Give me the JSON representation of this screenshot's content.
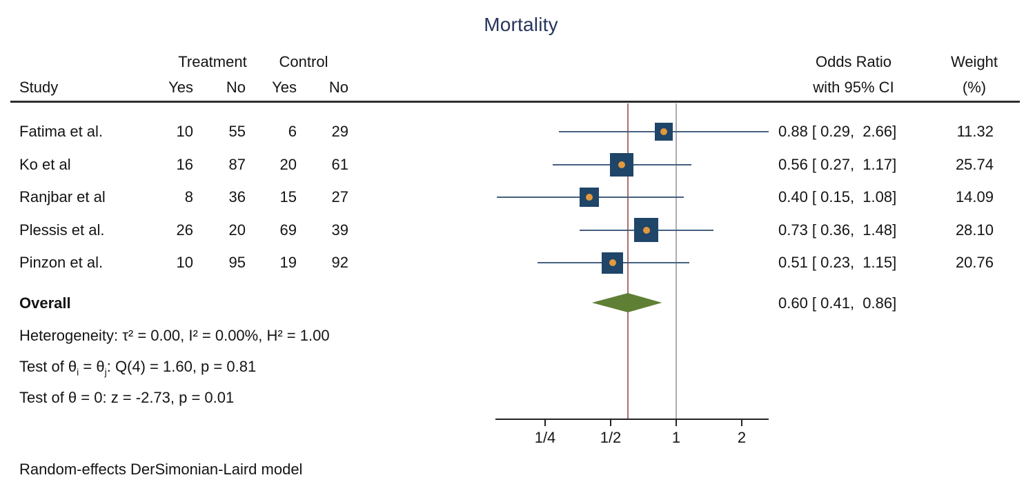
{
  "title": "Mortality",
  "table": {
    "col_study": "Study",
    "group_treatment": "Treatment",
    "group_control": "Control",
    "sub_yes": "Yes",
    "sub_no": "No",
    "col_or_line1": "Odds Ratio",
    "col_or_line2": "with 95% CI",
    "col_weight_line1": "Weight",
    "col_weight_line2": "(%)"
  },
  "rows": [
    {
      "study": "Fatima et al.",
      "t_yes": "10",
      "t_no": "55",
      "c_yes": "6",
      "c_no": "29",
      "or_ci": "0.88 [ 0.29,  2.66]",
      "weight": "11.32"
    },
    {
      "study": "Ko et al",
      "t_yes": "16",
      "t_no": "87",
      "c_yes": "20",
      "c_no": "61",
      "or_ci": "0.56 [ 0.27,  1.17]",
      "weight": "25.74"
    },
    {
      "study": "Ranjbar et al",
      "t_yes": "8",
      "t_no": "36",
      "c_yes": "15",
      "c_no": "27",
      "or_ci": "0.40 [ 0.15,  1.08]",
      "weight": "14.09"
    },
    {
      "study": "Plessis et al.",
      "t_yes": "26",
      "t_no": "20",
      "c_yes": "69",
      "c_no": "39",
      "or_ci": "0.73 [ 0.36,  1.48]",
      "weight": "28.10"
    },
    {
      "study": "Pinzon et al.",
      "t_yes": "10",
      "t_no": "95",
      "c_yes": "19",
      "c_no": "92",
      "or_ci": "0.51 [ 0.23,  1.15]",
      "weight": "20.76"
    }
  ],
  "overall": {
    "label": "Overall",
    "or_ci": "0.60 [ 0.41,  0.86]"
  },
  "stats": {
    "heterogeneity": "Heterogeneity: τ² = 0.00, I² = 0.00%, H² = 1.00",
    "test_q": {
      "pre": "Test of θ",
      "sub_i": "i",
      "mid": " = θ",
      "sub_j": "j",
      "post": ": Q(4) = 1.60, p = 0.81"
    },
    "test_z": "Test of θ = 0: z = -2.73, p = 0.01"
  },
  "footer": "Random-effects DerSimonian-Laird model",
  "axis": {
    "tick_labels": [
      "1/4",
      "1/2",
      "1",
      "2"
    ]
  },
  "colors": {
    "title_navy": "#26355e",
    "marker_square": "#1f4568",
    "marker_dot": "#e2993d",
    "ci_line": "#44607e",
    "pooled_line_red": "#ad6f6d",
    "null_line_gray": "#b1abab",
    "diamond_green": "#5f7f35",
    "axis_dark": "#222222"
  },
  "chart_data": {
    "type": "forest",
    "title": "Mortality",
    "effect_measure": "Odds Ratio",
    "x_scale": "log2",
    "xlim": [
      0.148,
      2.66
    ],
    "null_value": 1,
    "axis_ticks": [
      0.25,
      0.5,
      1,
      2
    ],
    "studies": [
      {
        "name": "Fatima et al.",
        "treatment_yes": 10,
        "treatment_no": 55,
        "control_yes": 6,
        "control_no": 29,
        "or": 0.88,
        "ci_low": 0.29,
        "ci_high": 2.66,
        "weight_pct": 11.32
      },
      {
        "name": "Ko et al",
        "treatment_yes": 16,
        "treatment_no": 87,
        "control_yes": 20,
        "control_no": 61,
        "or": 0.56,
        "ci_low": 0.27,
        "ci_high": 1.17,
        "weight_pct": 25.74
      },
      {
        "name": "Ranjbar et al",
        "treatment_yes": 8,
        "treatment_no": 36,
        "control_yes": 15,
        "control_no": 27,
        "or": 0.4,
        "ci_low": 0.15,
        "ci_high": 1.08,
        "weight_pct": 14.09
      },
      {
        "name": "Plessis et al.",
        "treatment_yes": 26,
        "treatment_no": 20,
        "control_yes": 69,
        "control_no": 39,
        "or": 0.73,
        "ci_low": 0.36,
        "ci_high": 1.48,
        "weight_pct": 28.1
      },
      {
        "name": "Pinzon et al.",
        "treatment_yes": 10,
        "treatment_no": 95,
        "control_yes": 19,
        "control_no": 92,
        "or": 0.51,
        "ci_low": 0.23,
        "ci_high": 1.15,
        "weight_pct": 20.76
      }
    ],
    "overall": {
      "or": 0.6,
      "ci_low": 0.41,
      "ci_high": 0.86
    },
    "heterogeneity": {
      "tau2": 0.0,
      "i2_pct": 0.0,
      "h2": 1.0
    },
    "test_q": {
      "df": 4,
      "q": 1.6,
      "p": 0.81
    },
    "test_z": {
      "z": -2.73,
      "p": 0.01
    },
    "model": "Random-effects DerSimonian-Laird"
  }
}
